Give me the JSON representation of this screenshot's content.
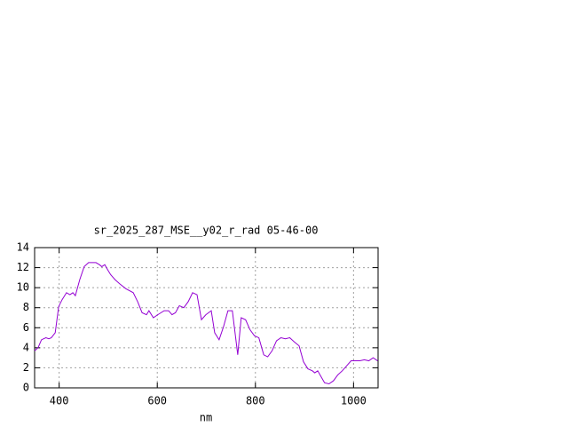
{
  "chart_data": {
    "type": "line",
    "title": "sr_2025_287_MSE__y02_r_rad 05-46-00",
    "x_label": "nm",
    "xlim": [
      350,
      1050
    ],
    "xticks": [
      400,
      600,
      800,
      1000
    ],
    "ylim": [
      0,
      14
    ],
    "yticks": [
      0,
      2,
      4,
      6,
      8,
      10,
      12,
      14
    ],
    "grid": true,
    "series": [
      {
        "color": "#9400d3",
        "x": [
          350,
          357,
          364,
          373,
          379,
          384,
          392,
          399,
          406,
          415,
          422,
          428,
          433,
          442,
          451,
          460,
          475,
          482,
          487,
          493,
          500,
          505,
          514,
          523,
          536,
          551,
          560,
          569,
          578,
          583,
          592,
          601,
          614,
          623,
          630,
          637,
          645,
          654,
          663,
          672,
          681,
          690,
          699,
          710,
          717,
          726,
          735,
          744,
          753,
          764,
          771,
          780,
          789,
          798,
          807,
          817,
          825,
          834,
          843,
          852,
          861,
          870,
          879,
          889,
          898,
          907,
          916,
          921,
          927,
          934,
          941,
          950,
          959,
          968,
          977,
          986,
          995,
          1004,
          1013,
          1022,
          1031,
          1040,
          1049
        ],
        "values": [
          3.7,
          4.0,
          4.8,
          5.0,
          4.9,
          5.0,
          5.5,
          8.1,
          8.8,
          9.5,
          9.3,
          9.5,
          9.2,
          10.8,
          12.1,
          12.5,
          12.5,
          12.3,
          12.1,
          12.3,
          11.7,
          11.3,
          10.8,
          10.4,
          9.9,
          9.5,
          8.6,
          7.5,
          7.3,
          7.7,
          7.0,
          7.3,
          7.7,
          7.7,
          7.3,
          7.5,
          8.2,
          8.0,
          8.6,
          9.5,
          9.3,
          6.8,
          7.3,
          7.7,
          5.5,
          4.8,
          6.1,
          7.7,
          7.7,
          3.3,
          7.0,
          6.8,
          5.8,
          5.2,
          5.0,
          3.3,
          3.1,
          3.7,
          4.7,
          5.0,
          4.9,
          5.0,
          4.6,
          4.2,
          2.6,
          1.9,
          1.7,
          1.5,
          1.7,
          1.1,
          0.5,
          0.4,
          0.7,
          1.3,
          1.7,
          2.2,
          2.7,
          2.7,
          2.7,
          2.8,
          2.7,
          3.0,
          2.7
        ]
      }
    ]
  }
}
